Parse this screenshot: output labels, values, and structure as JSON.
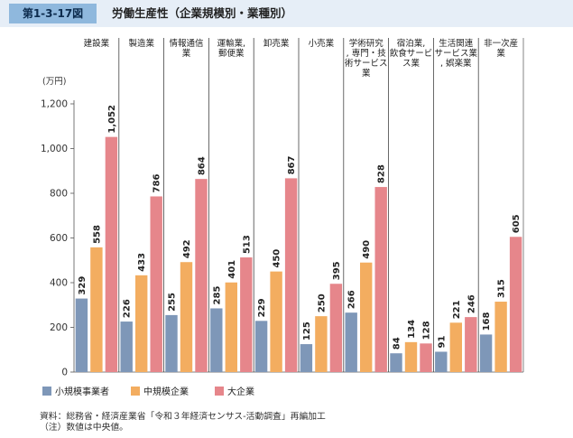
{
  "header": {
    "figure_number": "第1-3-17図",
    "title": "労働生産性（企業規模別・業種別）"
  },
  "colors": {
    "small": "#7e97b8",
    "medium": "#f3ad60",
    "large": "#e6868b",
    "header_bg": "#e6eef7",
    "badge_bg": "#8fb8dd"
  },
  "chart_data": {
    "type": "bar",
    "ylabel": "(万円)",
    "ylim": [
      0,
      1200
    ],
    "yticks": [
      0,
      200,
      400,
      600,
      800,
      1000,
      1200
    ],
    "ytick_labels": [
      "0",
      "200",
      "400",
      "600",
      "800",
      "1,000",
      "1,200"
    ],
    "categories": [
      [
        "建設業"
      ],
      [
        "製造業"
      ],
      [
        "情報通信",
        "業"
      ],
      [
        "運輸業,",
        "郵便業"
      ],
      [
        "卸売業"
      ],
      [
        "小売業"
      ],
      [
        "学術研究",
        ", 専門・技",
        "術サービス",
        "業"
      ],
      [
        "宿泊業,",
        "飲食サービ",
        "ス業"
      ],
      [
        "生活関連",
        "サービス業",
        ", 娯楽業"
      ],
      [
        "非一次産",
        "業"
      ]
    ],
    "series": [
      {
        "name": "小規模事業者",
        "values": [
          329,
          226,
          255,
          285,
          229,
          125,
          266,
          84,
          91,
          168
        ],
        "labels": [
          "329",
          "226",
          "255",
          "285",
          "229",
          "125",
          "266",
          "84",
          "91",
          "168"
        ]
      },
      {
        "name": "中規模企業",
        "values": [
          558,
          433,
          492,
          401,
          450,
          250,
          490,
          134,
          221,
          315
        ],
        "labels": [
          "558",
          "433",
          "492",
          "401",
          "450",
          "250",
          "490",
          "134",
          "221",
          "315"
        ]
      },
      {
        "name": "大企業",
        "values": [
          1052,
          786,
          864,
          513,
          867,
          395,
          828,
          128,
          246,
          605
        ],
        "labels": [
          "1,052",
          "786",
          "864",
          "513",
          "867",
          "395",
          "828",
          "128",
          "246",
          "605"
        ]
      }
    ],
    "legend_position": "bottom-left"
  },
  "footer": {
    "source": "資料：総務省・経済産業省「令和３年経済センサス‐活動調査」再編加工",
    "note": "（注）数値は中央値。"
  }
}
